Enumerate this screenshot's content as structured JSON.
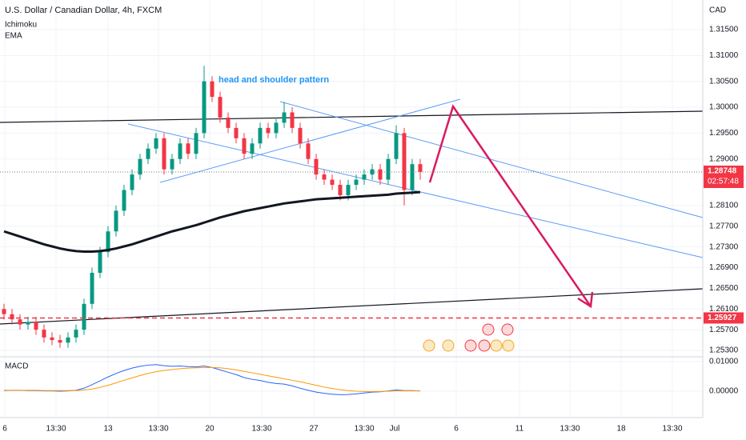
{
  "title": "U.S. Dollar / Canadian Dollar, 4h, FXCM",
  "indicators": [
    "Ichimoku",
    "EMA"
  ],
  "currency": "CAD",
  "annotation": "head and shoulder pattern",
  "chart_data": {
    "type": "candlestick",
    "ylim": [
      1.25192,
      1.32072
    ],
    "yticks": [
      {
        "value": 1.315,
        "label": "1.31500"
      },
      {
        "value": 1.31,
        "label": "1.31000"
      },
      {
        "value": 1.305,
        "label": "1.30500"
      },
      {
        "value": 1.3,
        "label": "1.30000"
      },
      {
        "value": 1.295,
        "label": "1.29500"
      },
      {
        "value": 1.29,
        "label": "1.29000"
      },
      {
        "value": 1.281,
        "label": "1.28100"
      },
      {
        "value": 1.277,
        "label": "1.27700"
      },
      {
        "value": 1.273,
        "label": "1.27300"
      },
      {
        "value": 1.269,
        "label": "1.26900"
      },
      {
        "value": 1.265,
        "label": "1.26500"
      },
      {
        "value": 1.261,
        "label": "1.26100"
      },
      {
        "value": 1.257,
        "label": "1.25700"
      },
      {
        "value": 1.253,
        "label": "1.25300"
      }
    ],
    "x_labels": [
      "6",
      "13:30",
      "13",
      "13:30",
      "20",
      "13:30",
      "27",
      "13:30",
      "Jul",
      "6",
      "11",
      "13:30",
      "18",
      "13:30"
    ],
    "up_color": "#089981",
    "down_color": "#f23645",
    "candles": [
      [
        1.261,
        1.262,
        1.259,
        1.26
      ],
      [
        1.26,
        1.261,
        1.258,
        1.259
      ],
      [
        1.259,
        1.26,
        1.257,
        1.258
      ],
      [
        1.258,
        1.2595,
        1.257,
        1.2585
      ],
      [
        1.2585,
        1.2595,
        1.256,
        1.257
      ],
      [
        1.257,
        1.258,
        1.2545,
        1.2555
      ],
      [
        1.2555,
        1.2565,
        1.254,
        1.255
      ],
      [
        1.255,
        1.256,
        1.2535,
        1.2545
      ],
      [
        1.2545,
        1.2565,
        1.2535,
        1.2555
      ],
      [
        1.2555,
        1.258,
        1.2545,
        1.257
      ],
      [
        1.257,
        1.263,
        1.256,
        1.262
      ],
      [
        1.262,
        1.269,
        1.261,
        1.268
      ],
      [
        1.268,
        1.273,
        1.267,
        1.272
      ],
      [
        1.272,
        1.277,
        1.271,
        1.276
      ],
      [
        1.276,
        1.281,
        1.275,
        1.28
      ],
      [
        1.28,
        1.285,
        1.279,
        1.284
      ],
      [
        1.284,
        1.288,
        1.283,
        1.287
      ],
      [
        1.287,
        1.291,
        1.286,
        1.29
      ],
      [
        1.29,
        1.293,
        1.289,
        1.292
      ],
      [
        1.292,
        1.295,
        1.291,
        1.294
      ],
      [
        1.294,
        1.295,
        1.287,
        1.288
      ],
      [
        1.288,
        1.291,
        1.287,
        1.29
      ],
      [
        1.29,
        1.294,
        1.289,
        1.293
      ],
      [
        1.293,
        1.294,
        1.29,
        1.291
      ],
      [
        1.291,
        1.296,
        1.29,
        1.295
      ],
      [
        1.295,
        1.308,
        1.294,
        1.305
      ],
      [
        1.305,
        1.306,
        1.301,
        1.302
      ],
      [
        1.302,
        1.303,
        1.297,
        1.298
      ],
      [
        1.298,
        1.299,
        1.295,
        1.296
      ],
      [
        1.296,
        1.297,
        1.293,
        1.294
      ],
      [
        1.294,
        1.295,
        1.29,
        1.291
      ],
      [
        1.291,
        1.294,
        1.29,
        1.293
      ],
      [
        1.293,
        1.297,
        1.292,
        1.296
      ],
      [
        1.296,
        1.297,
        1.294,
        1.295
      ],
      [
        1.295,
        1.298,
        1.294,
        1.297
      ],
      [
        1.297,
        1.301,
        1.296,
        1.299
      ],
      [
        1.299,
        1.3,
        1.295,
        1.296
      ],
      [
        1.296,
        1.297,
        1.292,
        1.293
      ],
      [
        1.293,
        1.294,
        1.289,
        1.29
      ],
      [
        1.29,
        1.291,
        1.286,
        1.287
      ],
      [
        1.287,
        1.288,
        1.285,
        1.286
      ],
      [
        1.286,
        1.287,
        1.284,
        1.285
      ],
      [
        1.285,
        1.286,
        1.282,
        1.283
      ],
      [
        1.283,
        1.286,
        1.282,
        1.285
      ],
      [
        1.285,
        1.287,
        1.284,
        1.286
      ],
      [
        1.286,
        1.288,
        1.285,
        1.287
      ],
      [
        1.287,
        1.289,
        1.286,
        1.288
      ],
      [
        1.288,
        1.289,
        1.285,
        1.286
      ],
      [
        1.286,
        1.291,
        1.285,
        1.29
      ],
      [
        1.29,
        1.2965,
        1.289,
        1.295
      ],
      [
        1.295,
        1.296,
        1.281,
        1.284
      ],
      [
        1.284,
        1.29,
        1.283,
        1.289
      ],
      [
        1.289,
        1.29,
        1.286,
        1.2875
      ]
    ],
    "ema": {
      "color": "#131722",
      "values": [
        1.276,
        1.2755,
        1.275,
        1.2745,
        1.274,
        1.2735,
        1.2731,
        1.2727,
        1.2724,
        1.2722,
        1.2721,
        1.2721,
        1.2722,
        1.2724,
        1.2727,
        1.2731,
        1.2735,
        1.274,
        1.2745,
        1.275,
        1.2755,
        1.276,
        1.2764,
        1.2768,
        1.2772,
        1.2777,
        1.2782,
        1.2787,
        1.2791,
        1.2795,
        1.2799,
        1.2802,
        1.2805,
        1.2808,
        1.2811,
        1.2814,
        1.2816,
        1.2818,
        1.282,
        1.2822,
        1.2823,
        1.2824,
        1.2825,
        1.2826,
        1.2827,
        1.2828,
        1.2829,
        1.283,
        1.2831,
        1.2833,
        1.2834,
        1.2835,
        1.2836
      ]
    },
    "last_price": {
      "value": 1.28748,
      "label": "1.28748",
      "countdown": "02:57:48"
    },
    "level": {
      "value": 1.25927,
      "label": "1.25927",
      "color": "#f23645"
    }
  },
  "macd_chart": {
    "type": "line",
    "title": "MACD",
    "ylim": [
      -0.00892,
      0.01135
    ],
    "yticks": [
      {
        "value": 0.01,
        "label": "0.01000"
      },
      {
        "value": 0,
        "label": "0.00000"
      }
    ],
    "series": [
      {
        "color": "#2962ff",
        "values": [
          0.0002,
          0.0003,
          0.0003,
          0.0002,
          0.0002,
          0.0001,
          0.0001,
          0.0,
          0.0001,
          0.0003,
          0.001,
          0.0022,
          0.0035,
          0.0048,
          0.006,
          0.007,
          0.0078,
          0.0084,
          0.0088,
          0.009,
          0.0086,
          0.0084,
          0.0085,
          0.0083,
          0.0082,
          0.0085,
          0.008,
          0.0072,
          0.0064,
          0.0056,
          0.0046,
          0.004,
          0.0036,
          0.003,
          0.0026,
          0.0024,
          0.0018,
          0.001,
          0.0003,
          -0.0003,
          -0.0007,
          -0.001,
          -0.0012,
          -0.0011,
          -0.0009,
          -0.0006,
          -0.0003,
          -0.0002,
          0.0001,
          0.0004,
          0.0002,
          0.0002,
          0.0001
        ]
      },
      {
        "color": "#ff9800",
        "values": [
          0.0003,
          0.0003,
          0.0003,
          0.0003,
          0.0003,
          0.0002,
          0.0002,
          0.0002,
          0.0002,
          0.0002,
          0.0004,
          0.0007,
          0.0013,
          0.002,
          0.0028,
          0.0037,
          0.0045,
          0.0053,
          0.006,
          0.0066,
          0.007,
          0.0073,
          0.0076,
          0.0078,
          0.0079,
          0.008,
          0.008,
          0.0079,
          0.0076,
          0.0072,
          0.0067,
          0.0062,
          0.0057,
          0.0052,
          0.0047,
          0.0042,
          0.0037,
          0.0032,
          0.0026,
          0.002,
          0.0014,
          0.0009,
          0.0005,
          0.0002,
          0.0,
          -0.0001,
          -0.0001,
          -0.0001,
          0.0,
          0.0001,
          0.0001,
          0.0001,
          0.0001
        ]
      }
    ]
  }
}
